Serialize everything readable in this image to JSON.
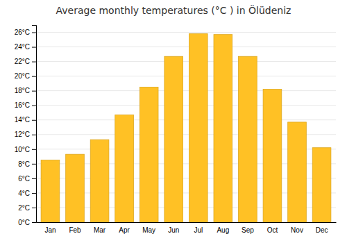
{
  "chart_data": {
    "type": "bar",
    "title": "Average monthly temperatures (°C ) in Ölüdeniz",
    "categories": [
      "Jan",
      "Feb",
      "Mar",
      "Apr",
      "May",
      "Jun",
      "Jul",
      "Aug",
      "Sep",
      "Oct",
      "Nov",
      "Dec"
    ],
    "values": [
      8.5,
      9.3,
      11.3,
      14.7,
      18.5,
      22.7,
      25.8,
      25.7,
      22.7,
      18.2,
      13.7,
      10.2
    ],
    "color": "#FFC125",
    "ylim": [
      0,
      27
    ],
    "yticks": [
      {
        "value": 0,
        "label": "0°C"
      },
      {
        "value": 2,
        "label": "2°C"
      },
      {
        "value": 4,
        "label": "4°C"
      },
      {
        "value": 6,
        "label": "6°C"
      },
      {
        "value": 8,
        "label": "8°C"
      },
      {
        "value": 10,
        "label": "10°C"
      },
      {
        "value": 12,
        "label": "12°C"
      },
      {
        "value": 14,
        "label": "14°C"
      },
      {
        "value": 16,
        "label": "16°C"
      },
      {
        "value": 18,
        "label": "18°C"
      },
      {
        "value": 20,
        "label": "20°C"
      },
      {
        "value": 22,
        "label": "22°C"
      },
      {
        "value": 24,
        "label": "24°C"
      },
      {
        "value": 26,
        "label": "26°C"
      }
    ],
    "grid": true
  }
}
